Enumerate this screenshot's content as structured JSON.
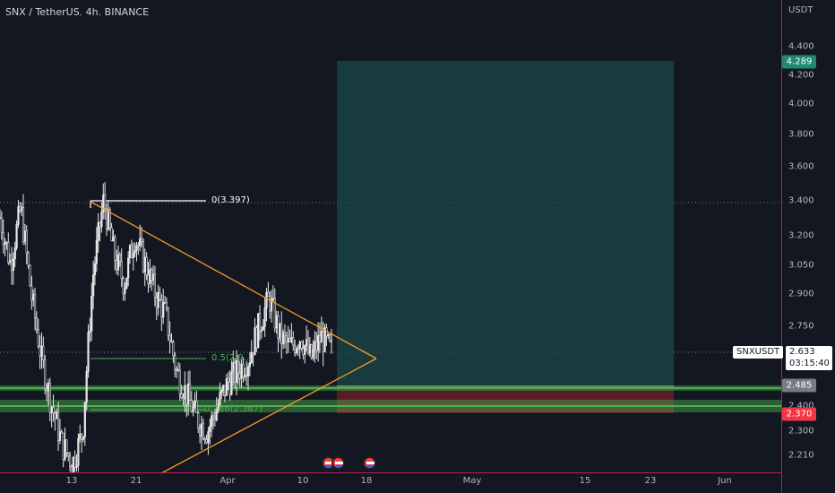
{
  "header": {
    "symbol": "SNX / TetherUS",
    "interval": "4h",
    "exchange": "BINANCE"
  },
  "colors": {
    "background": "#131722",
    "candle": "#e8e8e8",
    "triangle": "#f59b23",
    "target_zone": "#1b4a48",
    "stop_zone": "#6b1f28",
    "support_band": "#4caf50",
    "fib_green": "#4caf50",
    "accent_red": "#c2185b"
  },
  "price_axis": {
    "unit": "USDT",
    "ticks": [
      "4.400",
      "4.200",
      "4.000",
      "3.800",
      "3.600",
      "3.400",
      "3.200",
      "3.050",
      "2.900",
      "2.750",
      "2.600",
      "2.400",
      "2.300",
      "2.210"
    ],
    "target_price": "4.289",
    "last_price": "2.633",
    "countdown": "03:15:40",
    "level_price": "2.485",
    "stop_price": "2.370",
    "symbol_label": "SNXUSDT"
  },
  "time_axis": {
    "ticks": [
      "13",
      "21",
      "Apr",
      "10",
      "18",
      "May",
      "15",
      "23",
      "Jun"
    ]
  },
  "fib": {
    "top_label": "0(3.397)",
    "mid_label": "0.5(2.9...",
    "low_label": "0.786(2.387)"
  },
  "chart_data": {
    "type": "candlestick",
    "title": "SNX / TetherUS, 4h, BINANCE",
    "ylim": [
      2.18,
      4.5
    ],
    "log_scale": true,
    "x_ticks": [
      "13",
      "21",
      "Apr",
      "10",
      "18",
      "May",
      "15",
      "23",
      "Jun"
    ],
    "price_path": [
      [
        0,
        3.3
      ],
      [
        1,
        3.05
      ],
      [
        2,
        3.35
      ],
      [
        3,
        2.9
      ],
      [
        4,
        2.6
      ],
      [
        5,
        2.4
      ],
      [
        6,
        2.25
      ],
      [
        7,
        2.18
      ],
      [
        8,
        2.3
      ],
      [
        9,
        3.0
      ],
      [
        10,
        3.397
      ],
      [
        11,
        3.1
      ],
      [
        12,
        2.95
      ],
      [
        13,
        3.2
      ],
      [
        14,
        3.05
      ],
      [
        15,
        2.9
      ],
      [
        16,
        2.8
      ],
      [
        17,
        2.55
      ],
      [
        18,
        2.45
      ],
      [
        19,
        2.35
      ],
      [
        20,
        2.3
      ],
      [
        21,
        2.4
      ],
      [
        22,
        2.5
      ],
      [
        23,
        2.55
      ],
      [
        24,
        2.6
      ],
      [
        25,
        2.75
      ],
      [
        26,
        2.88
      ],
      [
        27,
        2.7
      ],
      [
        28,
        2.65
      ],
      [
        29,
        2.7
      ],
      [
        30,
        2.6
      ],
      [
        31,
        2.7
      ],
      [
        32,
        2.63
      ]
    ],
    "levels": {
      "fib_0": 3.397,
      "fib_0_786": 2.387,
      "resistance_dotted": 3.4,
      "support_1": 2.485,
      "support_2": 2.4
    },
    "long_position": {
      "entry": 2.485,
      "target": 4.289,
      "stop": 2.37
    },
    "triangle": {
      "upper_start": 3.397,
      "lower_start": 2.2,
      "apex": 2.63
    }
  }
}
